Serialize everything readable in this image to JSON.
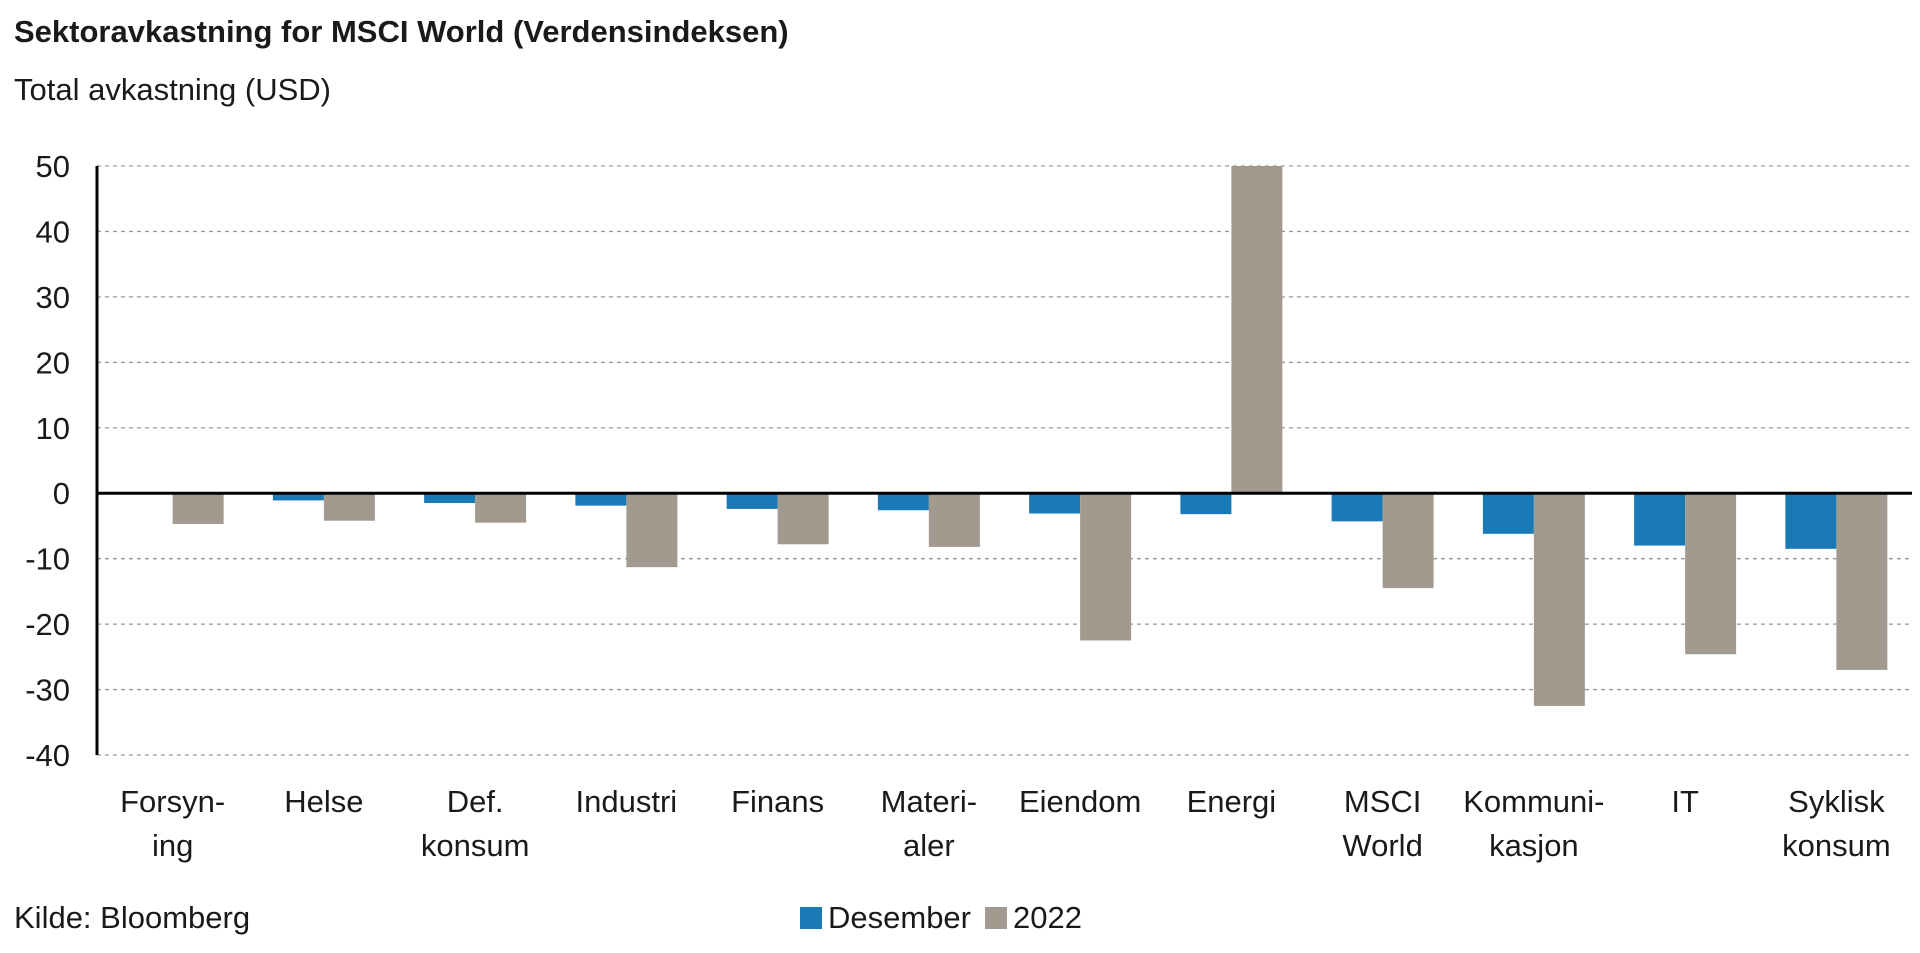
{
  "header": {
    "title": "Sektoravkastning for MSCI World (Verdensindeksen)",
    "subtitle": "Total avkastning (USD)"
  },
  "footer": {
    "source": "Kilde: Bloomberg"
  },
  "colors": {
    "desember": "#1a7ab5",
    "year": "#a39a8f",
    "grid": "#9a9a9a",
    "axis": "#000000"
  },
  "chart_data": {
    "type": "bar",
    "title": "Sektoravkastning for MSCI World (Verdensindeksen)",
    "ylabel": "Total avkastning (USD)",
    "xlabel": "",
    "ylim": [
      -40,
      50
    ],
    "yticks": [
      50,
      40,
      30,
      20,
      10,
      0,
      -10,
      -20,
      -30,
      -40
    ],
    "grid": true,
    "legend_position": "bottom",
    "categories": [
      [
        "Forsyn-",
        "ing"
      ],
      [
        "Helse"
      ],
      [
        "Def.",
        "konsum"
      ],
      [
        "Industri"
      ],
      [
        "Finans"
      ],
      [
        "Materi-",
        "aler"
      ],
      [
        "Eiendom"
      ],
      [
        "Energi"
      ],
      [
        "MSCI",
        "World"
      ],
      [
        "Kommuni-",
        "kasjon"
      ],
      [
        "IT"
      ],
      [
        "Syklisk",
        "konsum"
      ]
    ],
    "series": [
      {
        "name": "Desember",
        "values": [
          0,
          -1.1,
          -1.5,
          -1.9,
          -2.4,
          -2.6,
          -3.1,
          -3.2,
          -4.3,
          -6.2,
          -8.0,
          -8.5
        ]
      },
      {
        "name": "2022",
        "values": [
          -4.7,
          -4.2,
          -4.5,
          -11.3,
          -7.8,
          -8.2,
          -22.5,
          50,
          -14.5,
          -32.5,
          -24.6,
          -27.0
        ]
      }
    ]
  }
}
